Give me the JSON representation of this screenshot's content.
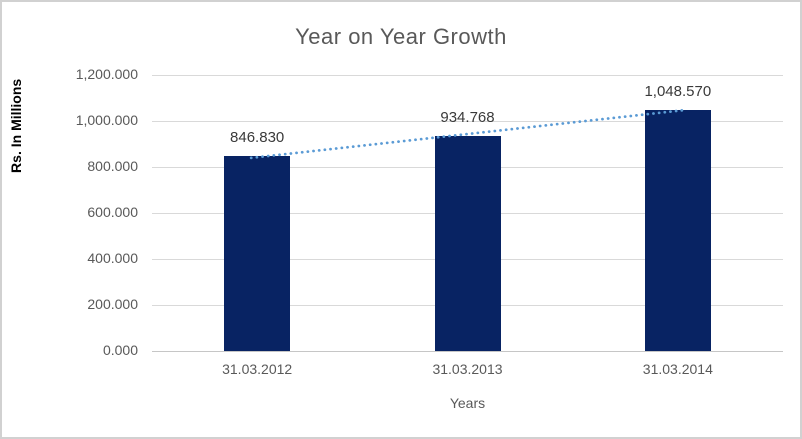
{
  "chart_title": "Year on Year Growth",
  "colors": {
    "bar": "#082363",
    "trendline": "#5b9bd5",
    "gridline": "#d9d9d9",
    "axis_text": "#595959",
    "data_label_text": "#3a3a3a",
    "frame_border": "#d1d1d1"
  },
  "chart_data": {
    "type": "bar",
    "title": "Year on Year Growth",
    "categories": [
      "31.03.2012",
      "31.03.2013",
      "31.03.2014"
    ],
    "values": [
      846.83,
      934.768,
      1048.57
    ],
    "data_labels": [
      "846.830",
      "934.768",
      "1,048.570"
    ],
    "xlabel": "Years",
    "ylabel": "Rs. In Millions",
    "ylim": [
      0,
      1200
    ],
    "y_tick_step": 200,
    "y_tick_labels": [
      "0.000",
      "200.000",
      "400.000",
      "600.000",
      "800.000",
      "1,000.000",
      "1,200.000"
    ],
    "grid": true,
    "legend": "none",
    "trendline": {
      "type": "linear",
      "style": "dotted"
    }
  }
}
